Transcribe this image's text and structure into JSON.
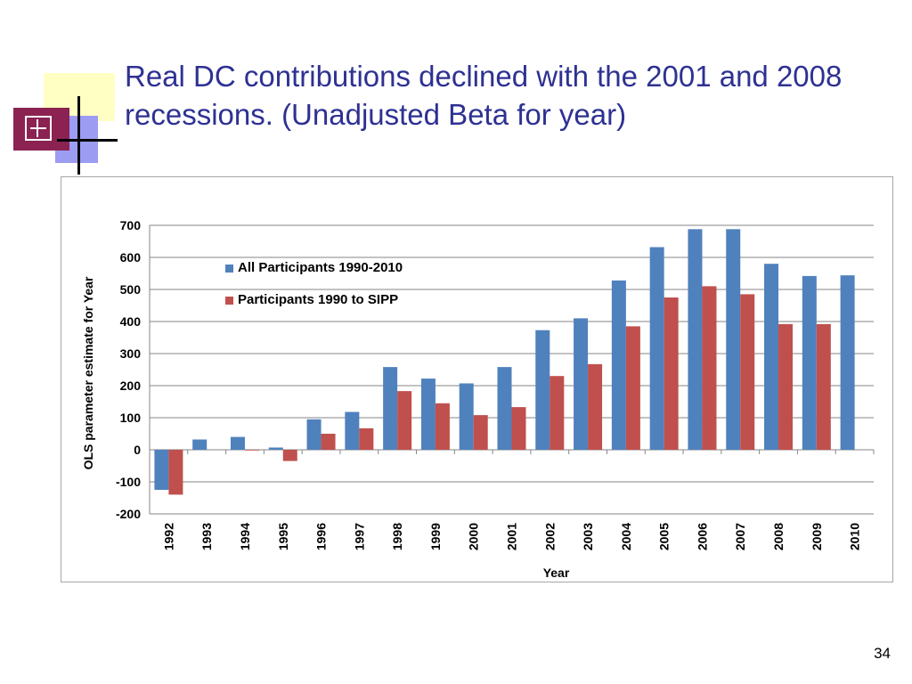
{
  "slide": {
    "title_line1": "Real DC contributions declined with the 2001 and 2008",
    "title_line2": "recessions. (Unadjusted Beta for year)",
    "page_number": "34"
  },
  "colors": {
    "title": "#2e3192",
    "series_all": "#4f81bd",
    "series_sipp": "#c0504d"
  },
  "chart_data": {
    "type": "bar",
    "title": "",
    "xlabel": "Year",
    "ylabel": "OLS parameter estimate for Year",
    "ylim": [
      -200,
      700
    ],
    "yticks": [
      -200,
      -100,
      0,
      100,
      200,
      300,
      400,
      500,
      600,
      700
    ],
    "grid": true,
    "legend_position": "upper-left inside plot",
    "categories": [
      "1992",
      "1993",
      "1994",
      "1995",
      "1996",
      "1997",
      "1998",
      "1999",
      "2000",
      "2001",
      "2002",
      "2003",
      "2004",
      "2005",
      "2006",
      "2007",
      "2008",
      "2009",
      "2010"
    ],
    "series": [
      {
        "name": "All Participants 1990-2010",
        "color": "#4f81bd",
        "values": [
          -125,
          32,
          40,
          7,
          95,
          118,
          258,
          222,
          207,
          258,
          373,
          410,
          528,
          632,
          688,
          688,
          580,
          542,
          544
        ]
      },
      {
        "name": "Participants 1990 to SIPP",
        "color": "#c0504d",
        "values": [
          -140,
          null,
          -2,
          -35,
          50,
          67,
          183,
          145,
          108,
          133,
          230,
          267,
          385,
          475,
          510,
          485,
          392,
          392,
          null
        ]
      }
    ]
  }
}
